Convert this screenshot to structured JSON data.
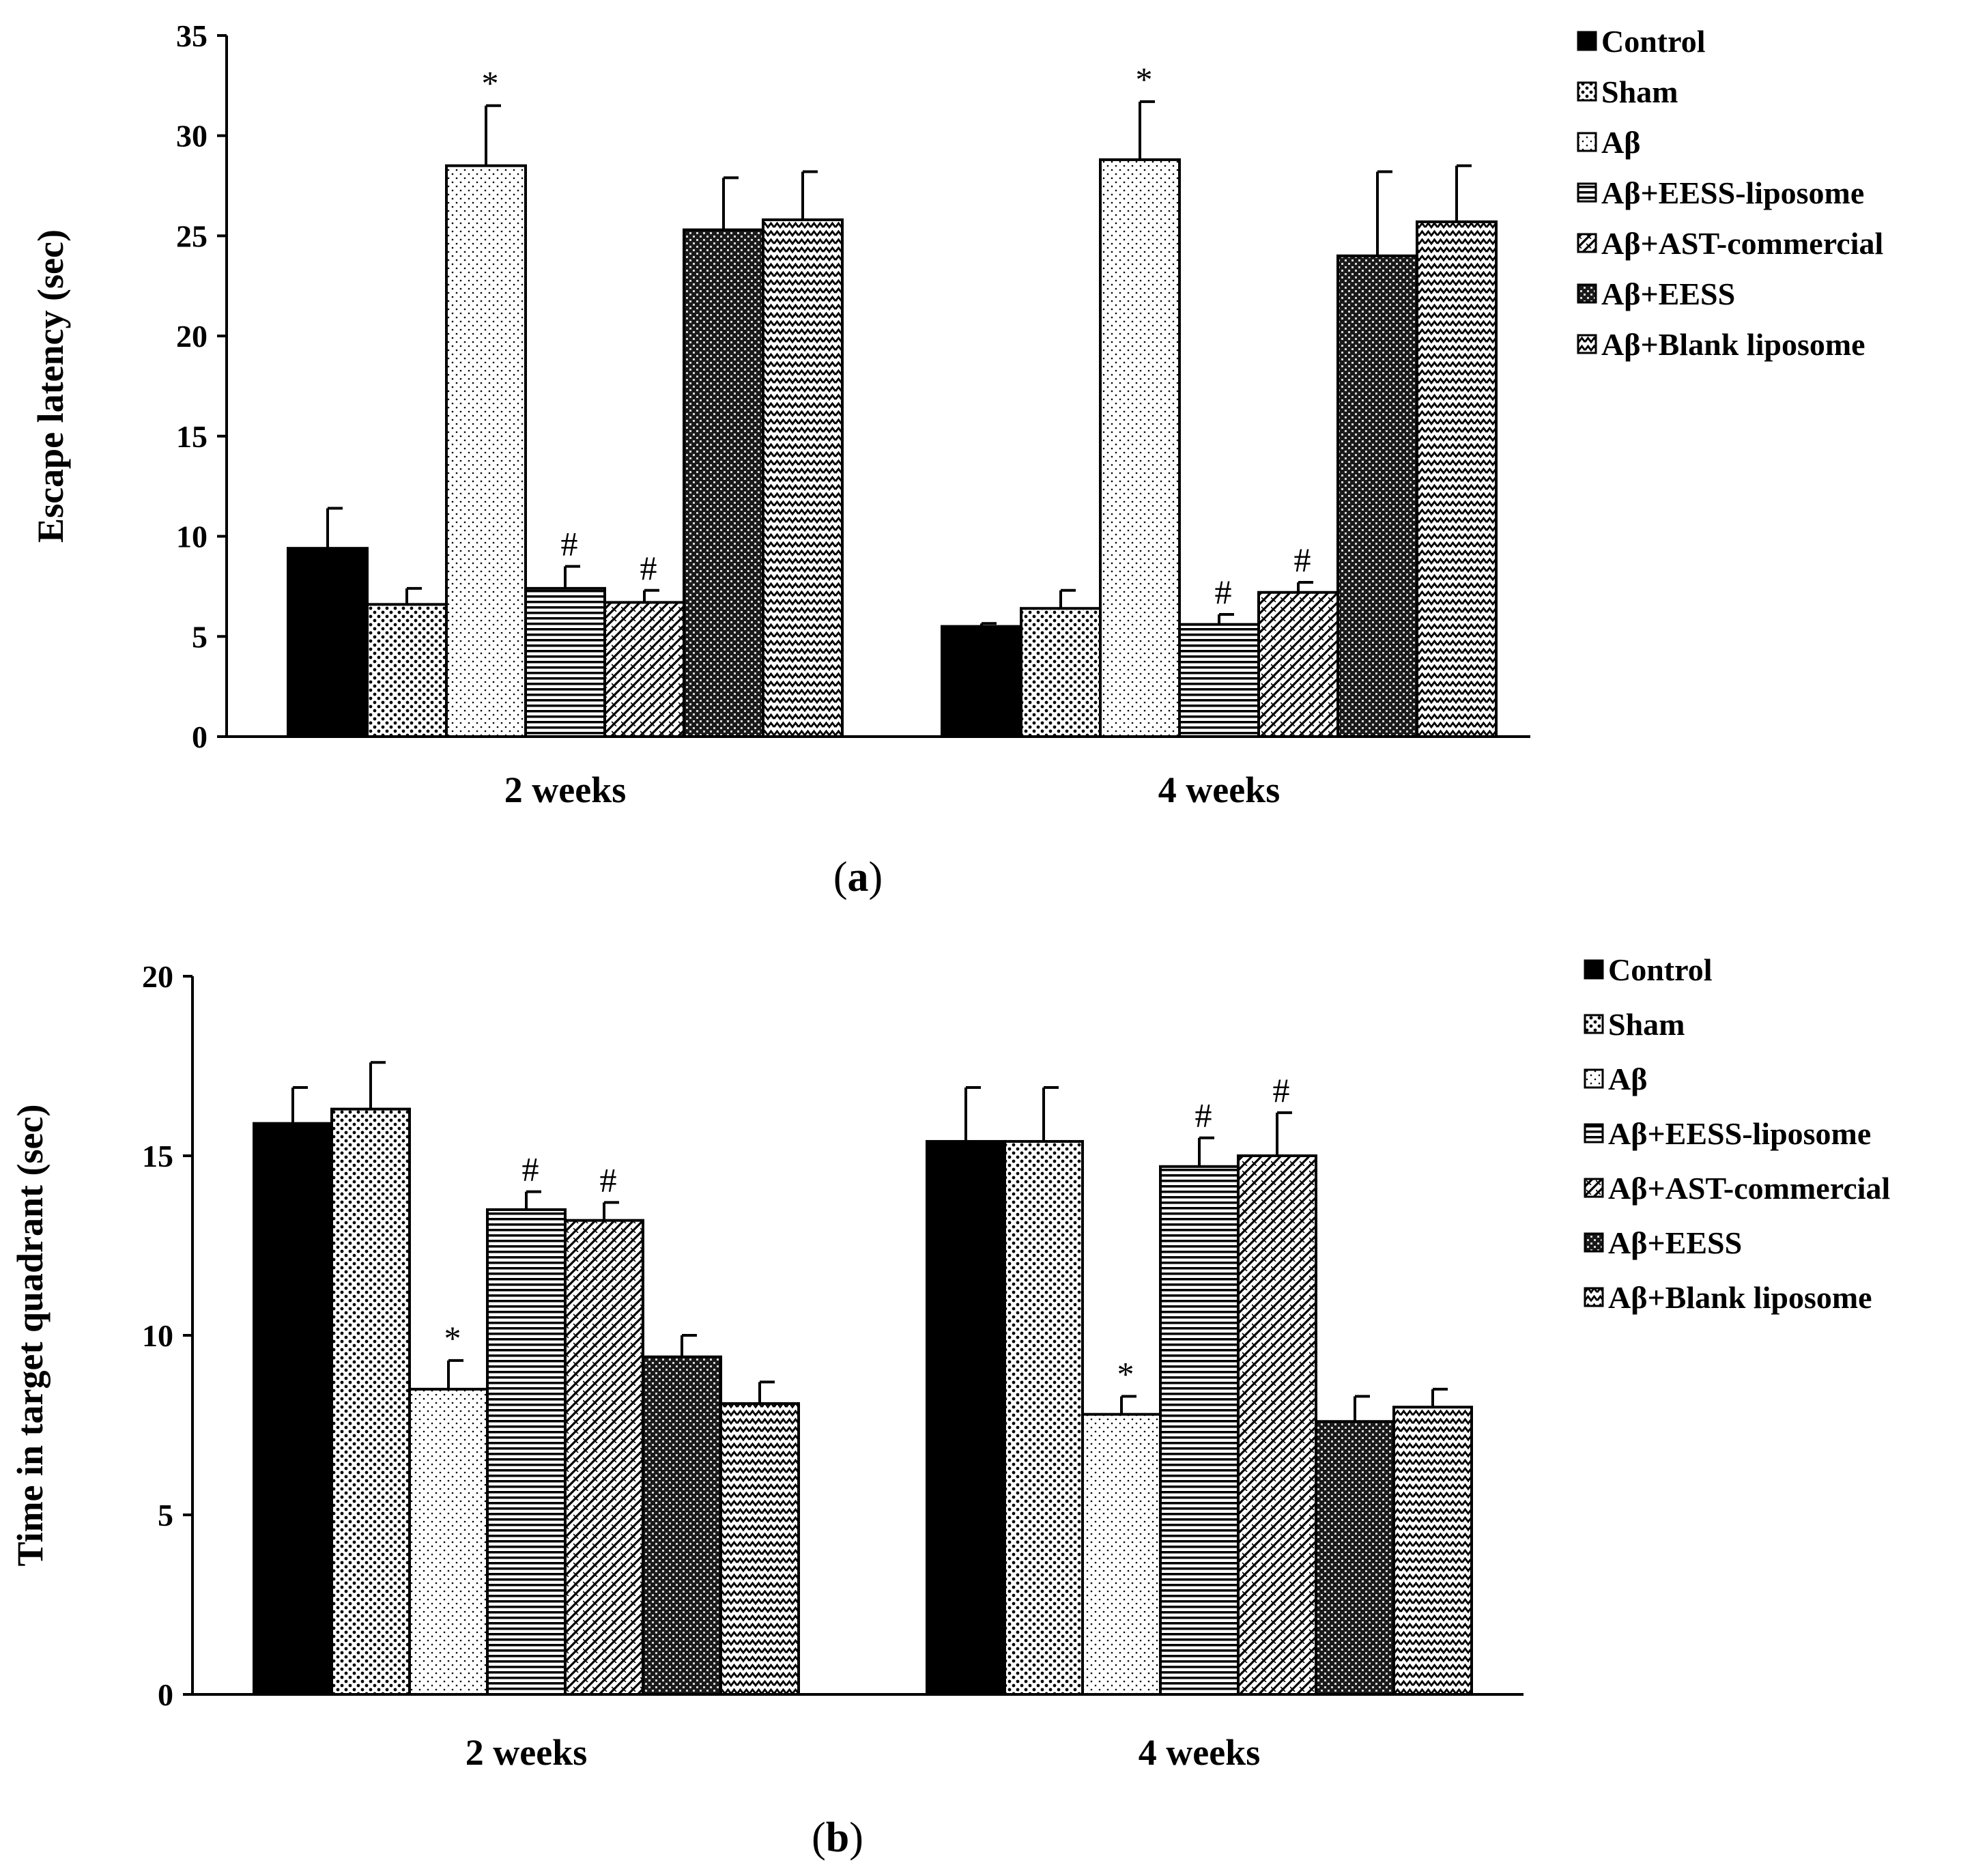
{
  "chart_data": [
    {
      "type": "bar",
      "panel_label": "a",
      "ylabel": "Escape latency (sec)",
      "xlabel": "",
      "ylim": [
        0,
        35
      ],
      "yticks": [
        0,
        5,
        10,
        15,
        20,
        25,
        30,
        35
      ],
      "categories": [
        "2 weeks",
        "4 weeks"
      ],
      "legend_position": "right",
      "series": [
        {
          "name": "Control",
          "values": [
            9.4,
            5.5
          ],
          "errors": [
            2.0,
            0.15
          ],
          "marks": [
            "",
            ""
          ],
          "pattern": "solid"
        },
        {
          "name": "Sham",
          "values": [
            6.6,
            6.4
          ],
          "errors": [
            0.8,
            0.9
          ],
          "marks": [
            "",
            ""
          ],
          "pattern": "dots-dense"
        },
        {
          "name": "Aβ",
          "values": [
            28.5,
            28.8
          ],
          "errors": [
            3.0,
            2.9
          ],
          "marks": [
            "*",
            "*"
          ],
          "pattern": "dots-light"
        },
        {
          "name": "Aβ+EESS-liposome",
          "values": [
            7.4,
            5.6
          ],
          "errors": [
            1.1,
            0.5
          ],
          "marks": [
            "#",
            "#"
          ],
          "pattern": "hlines"
        },
        {
          "name": "Aβ+AST-commercial",
          "values": [
            6.7,
            7.2
          ],
          "errors": [
            0.6,
            0.5
          ],
          "marks": [
            "#",
            "#"
          ],
          "pattern": "diag"
        },
        {
          "name": "Aβ+EESS",
          "values": [
            25.3,
            24.0
          ],
          "errors": [
            2.6,
            4.2
          ],
          "marks": [
            "",
            ""
          ],
          "pattern": "checker"
        },
        {
          "name": "Aβ+Blank liposome",
          "values": [
            25.8,
            25.7
          ],
          "errors": [
            2.4,
            2.8
          ],
          "marks": [
            "",
            ""
          ],
          "pattern": "zigzag"
        }
      ]
    },
    {
      "type": "bar",
      "panel_label": "b",
      "ylabel": "Time in target quadrant (sec)",
      "xlabel": "",
      "ylim": [
        0,
        20
      ],
      "yticks": [
        0,
        5,
        10,
        15,
        20
      ],
      "categories": [
        "2 weeks",
        "4 weeks"
      ],
      "legend_position": "right",
      "series": [
        {
          "name": "Control",
          "values": [
            15.9,
            15.4
          ],
          "errors": [
            1.0,
            1.5
          ],
          "marks": [
            "",
            ""
          ],
          "pattern": "solid"
        },
        {
          "name": "Sham",
          "values": [
            16.3,
            15.4
          ],
          "errors": [
            1.3,
            1.5
          ],
          "marks": [
            "",
            ""
          ],
          "pattern": "dots-dense"
        },
        {
          "name": "Aβ",
          "values": [
            8.5,
            7.8
          ],
          "errors": [
            0.8,
            0.5
          ],
          "marks": [
            "*",
            "*"
          ],
          "pattern": "dots-light"
        },
        {
          "name": "Aβ+EESS-liposome",
          "values": [
            13.5,
            14.7
          ],
          "errors": [
            0.5,
            0.8
          ],
          "marks": [
            "#",
            "#"
          ],
          "pattern": "hlines"
        },
        {
          "name": "Aβ+AST-commercial",
          "values": [
            13.2,
            15.0
          ],
          "errors": [
            0.5,
            1.2
          ],
          "marks": [
            "#",
            "#"
          ],
          "pattern": "diag"
        },
        {
          "name": "Aβ+EESS",
          "values": [
            9.4,
            7.6
          ],
          "errors": [
            0.6,
            0.7
          ],
          "marks": [
            "",
            ""
          ],
          "pattern": "checker"
        },
        {
          "name": "Aβ+Blank liposome",
          "values": [
            8.1,
            8.0
          ],
          "errors": [
            0.6,
            0.5
          ],
          "marks": [
            "",
            ""
          ],
          "pattern": "zigzag"
        }
      ]
    }
  ]
}
